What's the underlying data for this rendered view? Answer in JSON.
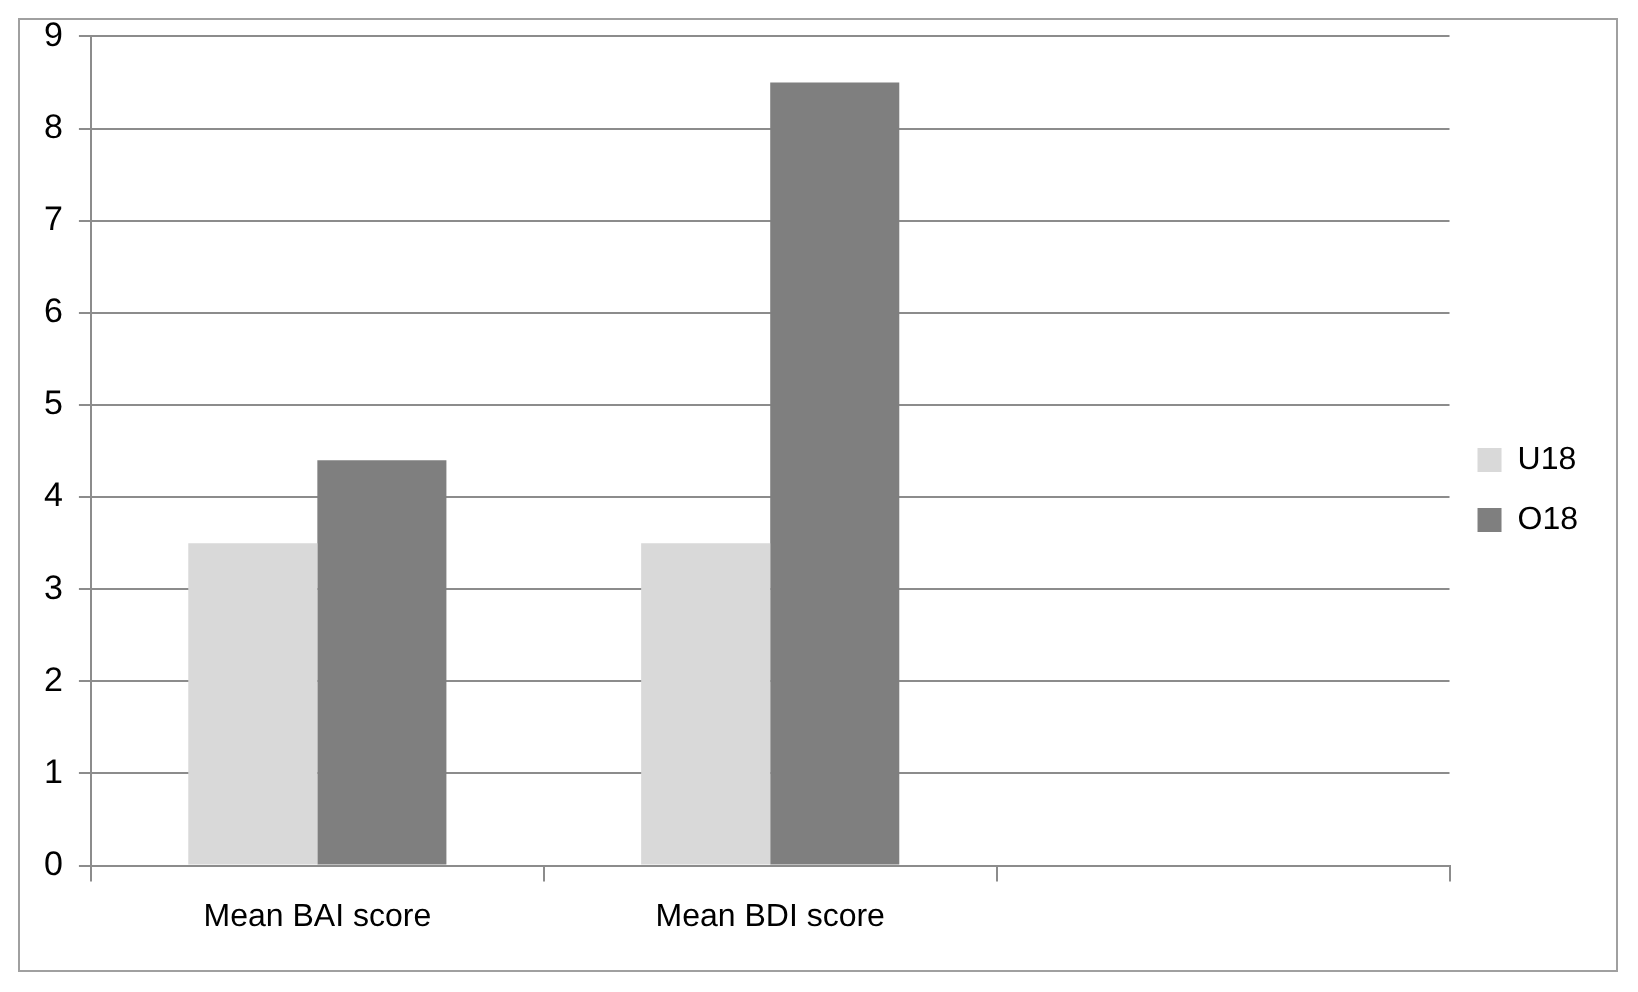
{
  "chart_data": {
    "type": "bar",
    "categories": [
      "Mean BAI score",
      "Mean BDI score",
      null
    ],
    "series": [
      {
        "name": "U18",
        "color": "#d9d9d9",
        "values": [
          3.5,
          3.5,
          null
        ]
      },
      {
        "name": "O18",
        "color": "#7f7f7f",
        "values": [
          4.4,
          8.5,
          null
        ]
      }
    ],
    "ylim": [
      0,
      9
    ],
    "yticks": [
      0,
      1,
      2,
      3,
      4,
      5,
      6,
      7,
      8,
      9
    ],
    "grid": "y",
    "legend": "right"
  }
}
